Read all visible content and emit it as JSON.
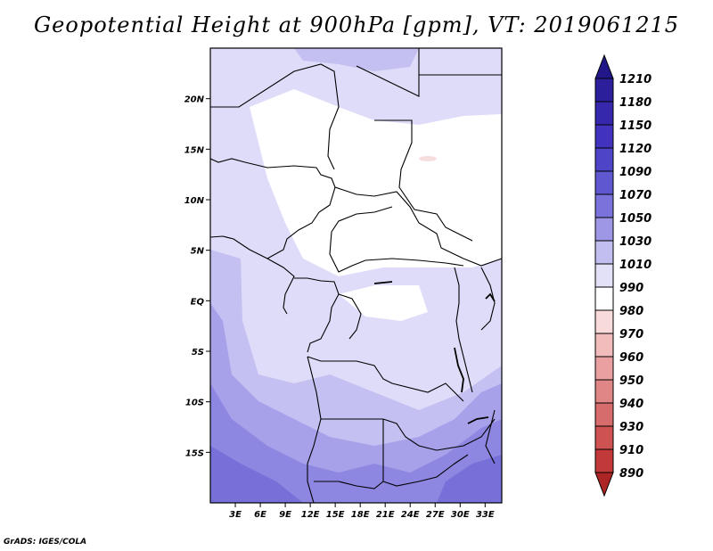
{
  "title": "Geopotential Height at 900hPa [gpm], VT: 2019061215",
  "credit": "GrADS: IGES/COLA",
  "map": {
    "lat_ticks": [
      "20N",
      "15N",
      "10N",
      "5N",
      "EQ",
      "5S",
      "10S",
      "15S"
    ],
    "lon_ticks": [
      "3E",
      "6E",
      "9E",
      "12E",
      "15E",
      "18E",
      "21E",
      "24E",
      "27E",
      "30E",
      "33E"
    ],
    "lon_range": [
      0,
      35
    ],
    "lat_range": [
      -20,
      25
    ]
  },
  "colorbar": {
    "levels": [
      "1210",
      "1180",
      "1150",
      "1120",
      "1090",
      "1070",
      "1050",
      "1030",
      "1010",
      "990",
      "980",
      "970",
      "960",
      "950",
      "940",
      "930",
      "910",
      "890"
    ],
    "colors": [
      "#211788",
      "#2b1f9b",
      "#3628ad",
      "#4133bd",
      "#4e44c8",
      "#5f57d0",
      "#7a73dc",
      "#9e97e6",
      "#c2bef0",
      "#e3e1f8",
      "#ffffff",
      "#f8dada",
      "#f2bcbc",
      "#eaa0a0",
      "#e08686",
      "#d76c6c",
      "#cf5252",
      "#c23939",
      "#ae2525"
    ]
  }
}
